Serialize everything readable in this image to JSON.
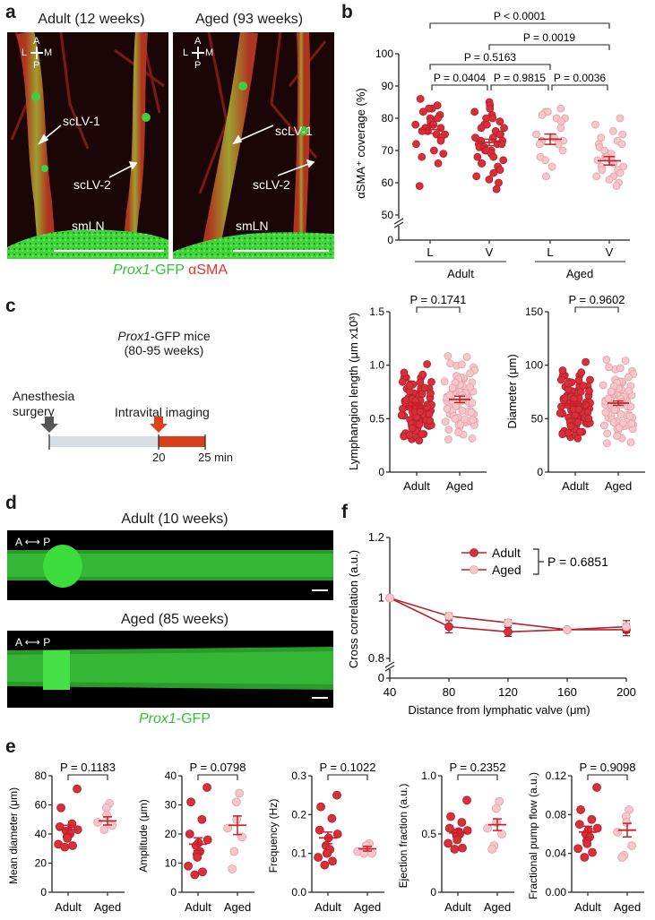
{
  "panels": {
    "a": {
      "letter": "a",
      "left_title": "Adult (12 weeks)",
      "right_title": "Aged (93 weeks)",
      "vessel1": "scLV-1",
      "vessel2": "scLV-2",
      "node": "smLN",
      "axis_a": "A",
      "axis_p": "P",
      "axis_l": "L",
      "axis_m": "M",
      "legend_gfp_italic": "Prox1",
      "legend_gfp_rest": "-GFP",
      "legend_sma": "αSMA"
    },
    "b": {
      "letter": "b"
    },
    "c": {
      "letter": "c",
      "mice_italic": "Prox1",
      "mice_rest": "-GFP mice",
      "mice_age": "(80-95 weeks)",
      "step1a": "Anesthesia",
      "step1b": "surgery",
      "step2": "Intravital imaging",
      "tick1": "20",
      "tick2": "25 min"
    },
    "d": {
      "letter": "d",
      "adult_title": "Adult (10 weeks)",
      "aged_title": "Aged (85 weeks)",
      "axis_a": "A",
      "axis_p": "P",
      "legend_italic": "Prox1",
      "legend_rest": "-GFP"
    },
    "e": {
      "letter": "e"
    },
    "f": {
      "letter": "f"
    }
  },
  "colors": {
    "adult": "#d8303a",
    "aged": "#f6c6ca",
    "aged_edge": "#e3a0a6",
    "errorbar": "#c8202a",
    "gfp": "#33c233",
    "sma": "#e8322a"
  },
  "chart_data": [
    {
      "id": "b-top",
      "type": "scatter",
      "ylabel": "αSMA⁺ coverage (%)",
      "ylim": [
        50,
        100
      ],
      "axis_break": true,
      "yticks": [
        0,
        50,
        60,
        70,
        80,
        90,
        100
      ],
      "categories": [
        "L",
        "V",
        "L",
        "V"
      ],
      "groups": [
        "Adult",
        "Aged"
      ],
      "means": [
        76.5,
        72.5,
        73.5,
        66.8
      ],
      "sem": [
        1.2,
        1.0,
        1.6,
        1.3
      ],
      "comparisons": [
        {
          "a": 0,
          "b": 1,
          "p": "P = 0.0404"
        },
        {
          "a": 1,
          "b": 2,
          "p": "P = 0.9815"
        },
        {
          "a": 2,
          "b": 3,
          "p": "P = 0.0036"
        },
        {
          "a": 0,
          "b": 2,
          "p": "P = 0.5163"
        },
        {
          "a": 1,
          "b": 3,
          "p": "P = 0.0019"
        },
        {
          "a": 0,
          "b": 3,
          "p": "P < 0.0001"
        }
      ],
      "points": [
        [
          86,
          84,
          83,
          83,
          82,
          81,
          80,
          80,
          79,
          79,
          78,
          78,
          78,
          77,
          77,
          77,
          76,
          76,
          75,
          75,
          74,
          73,
          72,
          70,
          69,
          68,
          66,
          59
        ],
        [
          85,
          84,
          83,
          82,
          81,
          80,
          80,
          79,
          78,
          78,
          77,
          77,
          76,
          75,
          75,
          74,
          74,
          73,
          73,
          72,
          72,
          72,
          71,
          71,
          70,
          70,
          70,
          69,
          68,
          68,
          67,
          66,
          66,
          65,
          64,
          63,
          62,
          61,
          60,
          58
        ],
        [
          83,
          82,
          82,
          81,
          80,
          80,
          79,
          77,
          75,
          74,
          73,
          73,
          72,
          72,
          70,
          68,
          67,
          65,
          62
        ],
        [
          80,
          78,
          76,
          75,
          74,
          73,
          72,
          72,
          71,
          70,
          69,
          68,
          68,
          67,
          67,
          66,
          65,
          65,
          64,
          64,
          63,
          62,
          62,
          61,
          60,
          59
        ]
      ]
    },
    {
      "id": "b-length",
      "type": "scatter",
      "ylabel": "Lymphangion length (μm x10³)",
      "ylim": [
        0,
        1.5
      ],
      "yticks": [
        0,
        0.5,
        1.0,
        1.5
      ],
      "ytick_labels": [
        "0",
        "0.5",
        "1.0",
        "1.5"
      ],
      "categories": [
        "Adult",
        "Aged"
      ],
      "means": [
        0.62,
        0.68
      ],
      "sem": [
        0.03,
        0.03
      ],
      "comparisons": [
        {
          "a": 0,
          "b": 1,
          "p": "P = 0.1741"
        }
      ],
      "npoints": [
        82,
        78
      ]
    },
    {
      "id": "b-diameter",
      "type": "scatter",
      "ylabel": "Diameter (μm)",
      "ylim": [
        0,
        150
      ],
      "yticks": [
        0,
        50,
        100,
        150
      ],
      "ytick_labels": [
        "0",
        "50",
        "100",
        "150"
      ],
      "categories": [
        "Adult",
        "Aged"
      ],
      "means": [
        64,
        64.5
      ],
      "sem": [
        2.0,
        2.0
      ],
      "comparisons": [
        {
          "a": 0,
          "b": 1,
          "p": "P = 0.9602"
        }
      ],
      "npoints": [
        82,
        78
      ]
    },
    {
      "id": "f",
      "type": "line",
      "ylabel": "Cross correlation (a.u.)",
      "xlabel": "Distance from lymphatic valve (μm)",
      "x": [
        40,
        80,
        120,
        160,
        200
      ],
      "ylim": [
        0.8,
        1.2
      ],
      "axis_break": true,
      "yticks": [
        0,
        0.8,
        1,
        1.2
      ],
      "ytick_labels": [
        "0",
        "0.8",
        "1",
        "1.2"
      ],
      "series": [
        {
          "name": "Adult",
          "values": [
            1.0,
            0.905,
            0.888,
            0.895,
            0.895
          ],
          "err": [
            0,
            0.02,
            0.015,
            0.005,
            0.02
          ]
        },
        {
          "name": "Aged",
          "values": [
            1.0,
            0.94,
            0.918,
            0.895,
            0.905
          ],
          "err": [
            0,
            0.01,
            0.01,
            0.005,
            0.02
          ]
        }
      ],
      "p": "P = 0.6851"
    },
    {
      "id": "e1",
      "type": "scatter",
      "ylabel": "Mean diameter (μm)",
      "ylim": [
        0,
        80
      ],
      "yticks": [
        0,
        20,
        40,
        60,
        80
      ],
      "ytick_labels": [
        "0",
        "20",
        "40",
        "60",
        "80"
      ],
      "categories": [
        "Adult",
        "Aged"
      ],
      "means": [
        43,
        49
      ],
      "sem": [
        3,
        2.8
      ],
      "p": "P = 0.1183",
      "points": [
        [
          71,
          58,
          47,
          45,
          43,
          42,
          42,
          40,
          38,
          37,
          33,
          32,
          31
        ],
        [
          61,
          58,
          53,
          48,
          46,
          43
        ]
      ]
    },
    {
      "id": "e2",
      "type": "scatter",
      "ylabel": "Amplitude (μm)",
      "ylim": [
        0,
        40
      ],
      "yticks": [
        0,
        10,
        20,
        30,
        40
      ],
      "ytick_labels": [
        "0",
        "10",
        "20",
        "30",
        "40"
      ],
      "categories": [
        "Adult",
        "Aged"
      ],
      "means": [
        16.5,
        23
      ],
      "sem": [
        2.2,
        3.2
      ],
      "p": "P = 0.0798",
      "points": [
        [
          36,
          31,
          25,
          20,
          18,
          17,
          16,
          14,
          13,
          12,
          9,
          7,
          6
        ],
        [
          34,
          31,
          25,
          22,
          19,
          14,
          8
        ]
      ]
    },
    {
      "id": "e3",
      "type": "scatter",
      "ylabel": "Frequency (Hz)",
      "ylim": [
        0,
        0.3
      ],
      "yticks": [
        0,
        0.1,
        0.2,
        0.3
      ],
      "ytick_labels": [
        "0.0",
        "0.1",
        "0.2",
        "0.3"
      ],
      "categories": [
        "Adult",
        "Aged"
      ],
      "means": [
        0.14,
        0.112
      ],
      "sem": [
        0.015,
        0.006
      ],
      "p": "P = 0.1022",
      "points": [
        [
          0.25,
          0.22,
          0.19,
          0.16,
          0.15,
          0.14,
          0.12,
          0.11,
          0.1,
          0.1,
          0.09,
          0.08,
          0.07
        ],
        [
          0.125,
          0.12,
          0.11,
          0.105,
          0.1,
          0.1
        ]
      ]
    },
    {
      "id": "e4",
      "type": "scatter",
      "ylabel": "Ejection fraction (a.u.)",
      "ylim": [
        0,
        1.0
      ],
      "yticks": [
        0,
        0.5,
        1.0
      ],
      "ytick_labels": [
        "0",
        "0.5",
        "1.0"
      ],
      "categories": [
        "Adult",
        "Aged"
      ],
      "means": [
        0.51,
        0.58
      ],
      "sem": [
        0.03,
        0.05
      ],
      "p": "P = 0.2352",
      "points": [
        [
          0.79,
          0.65,
          0.6,
          0.55,
          0.53,
          0.52,
          0.51,
          0.5,
          0.48,
          0.45,
          0.42,
          0.38,
          0.37
        ],
        [
          0.78,
          0.72,
          0.6,
          0.55,
          0.5,
          0.4,
          0.37
        ]
      ]
    },
    {
      "id": "e5",
      "type": "scatter",
      "ylabel": "Fractional pump flow (a.u.)",
      "ylim": [
        0,
        0.12
      ],
      "yticks": [
        0,
        0.04,
        0.08,
        0.12
      ],
      "ytick_labels": [
        "0.00",
        "0.04",
        "0.08",
        "0.12"
      ],
      "categories": [
        "Adult",
        "Aged"
      ],
      "means": [
        0.062,
        0.064
      ],
      "sem": [
        0.006,
        0.007
      ],
      "p": "P = 0.9098",
      "points": [
        [
          0.108,
          0.085,
          0.075,
          0.07,
          0.066,
          0.064,
          0.06,
          0.057,
          0.053,
          0.05,
          0.045,
          0.041,
          0.036
        ],
        [
          0.085,
          0.078,
          0.072,
          0.062,
          0.048,
          0.038,
          0.036
        ]
      ]
    }
  ]
}
